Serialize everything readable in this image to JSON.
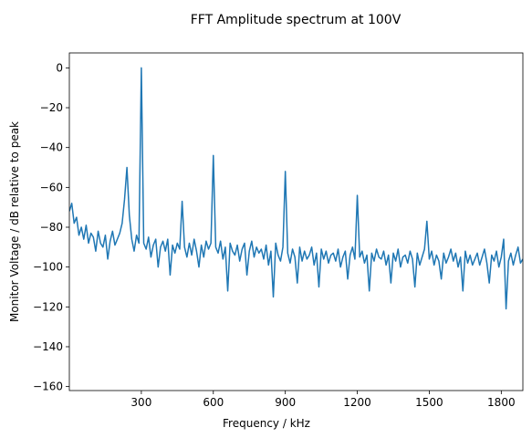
{
  "chart_data": {
    "type": "line",
    "title": "FFT Amplitude spectrum at 100V",
    "x_label": "Frequency / kHz",
    "y_label": "Monitor Voltage / dB relative to peak",
    "xlim": [
      0,
      1890
    ],
    "ylim": [
      -162,
      7.5
    ],
    "xticks": [
      300,
      600,
      900,
      1200,
      1500,
      1800
    ],
    "yticks": [
      0,
      {
        "value": -20,
        "label": "−20"
      },
      {
        "value": -40,
        "label": "−40"
      },
      {
        "value": -60,
        "label": "−60"
      },
      {
        "value": -80,
        "label": "−80"
      },
      {
        "value": -100,
        "label": "−100"
      },
      {
        "value": -120,
        "label": "−120"
      },
      {
        "value": -140,
        "label": "−140"
      },
      {
        "value": -160,
        "label": "−160"
      }
    ],
    "grid": false,
    "x": [
      0,
      10,
      20,
      30,
      40,
      50,
      60,
      70,
      80,
      90,
      100,
      110,
      120,
      130,
      140,
      150,
      160,
      170,
      180,
      190,
      200,
      210,
      220,
      230,
      240,
      250,
      260,
      270,
      280,
      290,
      300,
      310,
      320,
      330,
      340,
      350,
      360,
      370,
      380,
      390,
      400,
      410,
      420,
      430,
      440,
      450,
      460,
      470,
      480,
      490,
      500,
      510,
      520,
      530,
      540,
      550,
      560,
      570,
      580,
      590,
      600,
      610,
      620,
      630,
      640,
      650,
      660,
      670,
      680,
      690,
      700,
      710,
      720,
      730,
      740,
      750,
      760,
      770,
      780,
      790,
      800,
      810,
      820,
      830,
      840,
      850,
      860,
      870,
      880,
      890,
      900,
      910,
      920,
      930,
      940,
      950,
      960,
      970,
      980,
      990,
      1000,
      1010,
      1020,
      1030,
      1040,
      1050,
      1060,
      1070,
      1080,
      1090,
      1100,
      1110,
      1120,
      1130,
      1140,
      1150,
      1160,
      1170,
      1180,
      1190,
      1200,
      1210,
      1220,
      1230,
      1240,
      1250,
      1260,
      1270,
      1280,
      1290,
      1300,
      1310,
      1320,
      1330,
      1340,
      1350,
      1360,
      1370,
      1380,
      1390,
      1400,
      1410,
      1420,
      1430,
      1440,
      1450,
      1460,
      1470,
      1480,
      1490,
      1500,
      1510,
      1520,
      1530,
      1540,
      1550,
      1560,
      1570,
      1580,
      1590,
      1600,
      1610,
      1620,
      1630,
      1640,
      1650,
      1660,
      1670,
      1680,
      1690,
      1700,
      1710,
      1720,
      1730,
      1740,
      1750,
      1760,
      1770,
      1780,
      1790,
      1800,
      1810,
      1820,
      1830,
      1840,
      1850,
      1860,
      1870,
      1880,
      1890
    ],
    "series": [
      {
        "color": "#1f77b4",
        "values": [
          -72,
          -68,
          -78,
          -75,
          -84,
          -80,
          -86,
          -79,
          -88,
          -83,
          -85,
          -92,
          -82,
          -88,
          -90,
          -84,
          -96,
          -87,
          -82,
          -89,
          -86,
          -83,
          -78,
          -66,
          -50,
          -74,
          -86,
          -92,
          -84,
          -88,
          0,
          -88,
          -91,
          -85,
          -95,
          -89,
          -86,
          -100,
          -90,
          -87,
          -92,
          -86,
          -104,
          -89,
          -93,
          -88,
          -91,
          -67,
          -90,
          -95,
          -88,
          -94,
          -86,
          -92,
          -100,
          -89,
          -95,
          -87,
          -91,
          -88,
          -44,
          -90,
          -93,
          -87,
          -96,
          -90,
          -112,
          -88,
          -92,
          -94,
          -89,
          -97,
          -91,
          -88,
          -104,
          -92,
          -87,
          -95,
          -90,
          -93,
          -91,
          -96,
          -89,
          -99,
          -92,
          -115,
          -88,
          -94,
          -97,
          -90,
          -52,
          -93,
          -98,
          -91,
          -95,
          -108,
          -90,
          -97,
          -92,
          -96,
          -94,
          -90,
          -99,
          -93,
          -110,
          -91,
          -96,
          -92,
          -98,
          -94,
          -93,
          -97,
          -91,
          -100,
          -95,
          -92,
          -106,
          -94,
          -90,
          -96,
          -64,
          -95,
          -92,
          -98,
          -94,
          -112,
          -93,
          -97,
          -91,
          -95,
          -96,
          -92,
          -99,
          -94,
          -108,
          -93,
          -97,
          -91,
          -100,
          -95,
          -94,
          -98,
          -92,
          -96,
          -110,
          -93,
          -99,
          -95,
          -91,
          -77,
          -96,
          -92,
          -99,
          -94,
          -97,
          -106,
          -93,
          -98,
          -95,
          -91,
          -97,
          -93,
          -100,
          -95,
          -112,
          -92,
          -98,
          -94,
          -99,
          -96,
          -93,
          -99,
          -95,
          -91,
          -98,
          -108,
          -94,
          -97,
          -92,
          -100,
          -95,
          -86,
          -121,
          -97,
          -93,
          -99,
          -94,
          -90,
          -98,
          -96
        ]
      }
    ]
  }
}
